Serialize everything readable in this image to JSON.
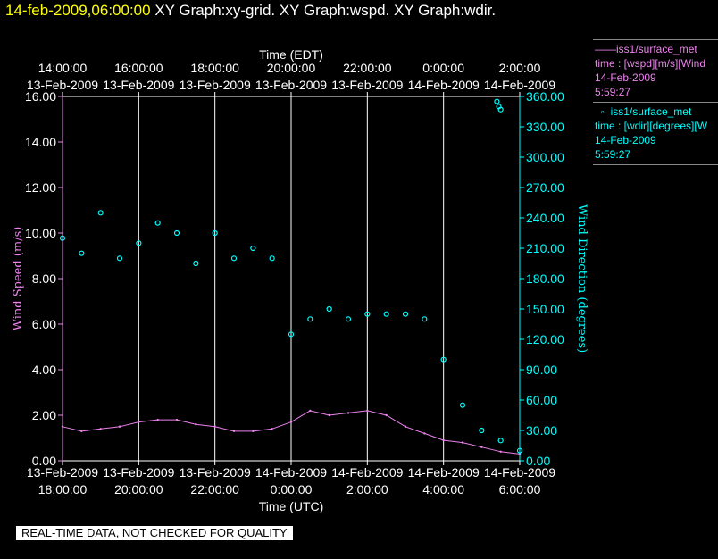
{
  "header": {
    "timestamp": "14-feb-2009,06:00:00",
    "graphs": "XY Graph:xy-grid.  XY Graph:wspd.  XY Graph:wdir."
  },
  "legend": [
    {
      "marker": "line",
      "name": "iss1/surface_met",
      "field": "time : [wspd][m/s][Wind",
      "date": "14-Feb-2009",
      "time": "5:59:27",
      "color": "#ee82ee"
    },
    {
      "marker": "circle",
      "name": "iss1/surface_met",
      "field": "time : [wdir][degrees][W",
      "date": "14-Feb-2009",
      "time": "5:59:27",
      "color": "#00ffff"
    }
  ],
  "disclaimer": "REAL-TIME DATA, NOT CHECKED FOR QUALITY",
  "chart_data": {
    "type": "line",
    "top_axis_title": "Time (EDT)",
    "bottom_axis_title": "Time (UTC)",
    "ylabel_left": "Wind Speed (m/s)",
    "ylabel_right": "Wind Direction (degrees)",
    "left_ylim": [
      0,
      16
    ],
    "right_ylim": [
      0,
      360
    ],
    "left_ticks": [
      "0.00",
      "2.00",
      "4.00",
      "6.00",
      "8.00",
      "10.00",
      "12.00",
      "14.00",
      "16.00"
    ],
    "right_ticks": [
      "0.00",
      "30.00",
      "60.00",
      "90.00",
      "120.00",
      "150.00",
      "180.00",
      "210.00",
      "240.00",
      "270.00",
      "300.00",
      "330.00",
      "360.00"
    ],
    "x_range_hours_utc": [
      -6,
      6
    ],
    "bottom_ticks": [
      {
        "date": "13-Feb-2009",
        "time": "18:00:00"
      },
      {
        "date": "13-Feb-2009",
        "time": "20:00:00"
      },
      {
        "date": "13-Feb-2009",
        "time": "22:00:00"
      },
      {
        "date": "14-Feb-2009",
        "time": "0:00:00"
      },
      {
        "date": "14-Feb-2009",
        "time": "2:00:00"
      },
      {
        "date": "14-Feb-2009",
        "time": "4:00:00"
      },
      {
        "date": "14-Feb-2009",
        "time": "6:00:00"
      }
    ],
    "top_ticks": [
      {
        "time": "14:00:00",
        "date": "13-Feb-2009"
      },
      {
        "time": "16:00:00",
        "date": "13-Feb-2009"
      },
      {
        "time": "18:00:00",
        "date": "13-Feb-2009"
      },
      {
        "time": "20:00:00",
        "date": "13-Feb-2009"
      },
      {
        "time": "22:00:00",
        "date": "13-Feb-2009"
      },
      {
        "time": "0:00:00",
        "date": "14-Feb-2009"
      },
      {
        "time": "2:00:00",
        "date": "14-Feb-2009"
      }
    ],
    "grid": "vertical",
    "series": [
      {
        "name": "iss1/surface_met wspd",
        "axis": "left",
        "color": "#ee82ee",
        "style": "line",
        "x": [
          -6,
          -5.5,
          -5,
          -4.5,
          -4,
          -3.5,
          -3,
          -2.5,
          -2,
          -1.5,
          -1,
          -0.5,
          0,
          0.5,
          1,
          1.5,
          2,
          2.5,
          3,
          3.5,
          4,
          4.5,
          5,
          5.5,
          6
        ],
        "y": [
          1.5,
          1.3,
          1.4,
          1.5,
          1.7,
          1.8,
          1.8,
          1.6,
          1.5,
          1.3,
          1.3,
          1.4,
          1.7,
          2.2,
          2.0,
          2.1,
          2.2,
          2.0,
          1.5,
          1.2,
          0.9,
          0.8,
          0.6,
          0.4,
          0.3
        ]
      },
      {
        "name": "iss1/surface_met wdir",
        "axis": "right",
        "color": "#00ffff",
        "style": "circles",
        "x": [
          -6,
          -5.5,
          -5,
          -4.5,
          -4,
          -3.5,
          -3,
          -2.5,
          -2,
          -1.5,
          -1,
          -0.5,
          0,
          0.5,
          1,
          1.5,
          2,
          2.5,
          3,
          3.5,
          4,
          4.5,
          5,
          5.5,
          6
        ],
        "y": [
          220,
          205,
          245,
          200,
          215,
          235,
          225,
          195,
          225,
          200,
          210,
          200,
          125,
          140,
          150,
          140,
          145,
          145,
          145,
          140,
          100,
          55,
          30,
          20,
          10
        ]
      },
      {
        "name": "iss1/surface_met wdir late",
        "axis": "right",
        "color": "#00ffff",
        "style": "circles",
        "x": [
          5.4,
          5.45,
          5.5
        ],
        "y": [
          355,
          350,
          347
        ]
      }
    ]
  }
}
